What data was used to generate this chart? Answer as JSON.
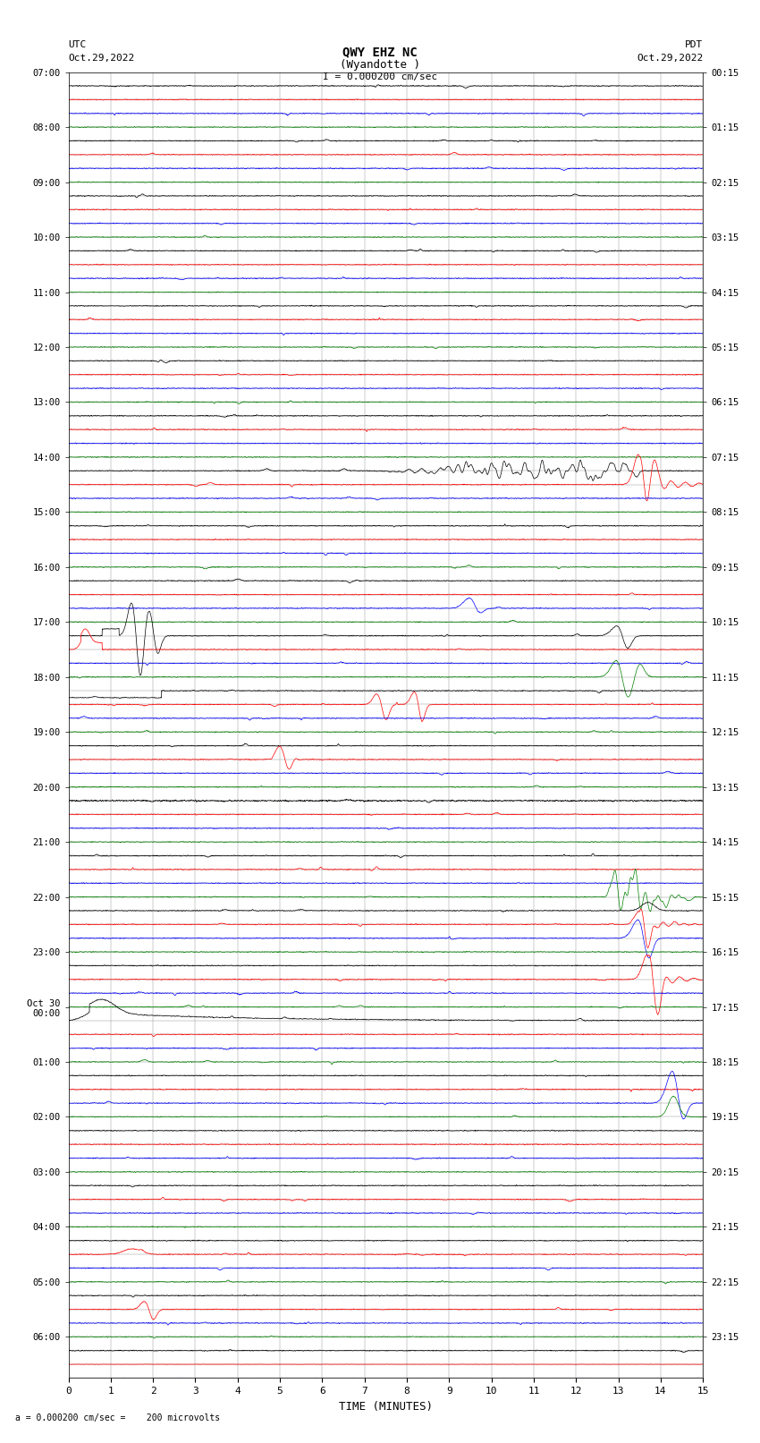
{
  "title_line1": "QWY EHZ NC",
  "title_line2": "(Wyandotte )",
  "scale_text": "I = 0.000200 cm/sec",
  "bottom_text": "a = 0.000200 cm/sec =    200 microvolts",
  "utc_label": "UTC",
  "utc_date": "Oct.29,2022",
  "pdt_label": "PDT",
  "pdt_date": "Oct.29,2022",
  "xlabel": "TIME (MINUTES)",
  "utc_times": [
    "07:00",
    "",
    "",
    "",
    "08:00",
    "",
    "",
    "",
    "09:00",
    "",
    "",
    "",
    "10:00",
    "",
    "",
    "",
    "11:00",
    "",
    "",
    "",
    "12:00",
    "",
    "",
    "",
    "13:00",
    "",
    "",
    "",
    "14:00",
    "",
    "",
    "",
    "15:00",
    "",
    "",
    "",
    "16:00",
    "",
    "",
    "",
    "17:00",
    "",
    "",
    "",
    "18:00",
    "",
    "",
    "",
    "19:00",
    "",
    "",
    "",
    "20:00",
    "",
    "",
    "",
    "21:00",
    "",
    "",
    "",
    "22:00",
    "",
    "",
    "",
    "23:00",
    "",
    "",
    "",
    "Oct 30\n00:00",
    "",
    "",
    "",
    "01:00",
    "",
    "",
    "",
    "02:00",
    "",
    "",
    "",
    "03:00",
    "",
    "",
    "",
    "04:00",
    "",
    "",
    "",
    "05:00",
    "",
    "",
    "",
    "06:00",
    "",
    ""
  ],
  "pdt_times": [
    "00:15",
    "",
    "",
    "",
    "01:15",
    "",
    "",
    "",
    "02:15",
    "",
    "",
    "",
    "03:15",
    "",
    "",
    "",
    "04:15",
    "",
    "",
    "",
    "05:15",
    "",
    "",
    "",
    "06:15",
    "",
    "",
    "",
    "07:15",
    "",
    "",
    "",
    "08:15",
    "",
    "",
    "",
    "09:15",
    "",
    "",
    "",
    "10:15",
    "",
    "",
    "",
    "11:15",
    "",
    "",
    "",
    "12:15",
    "",
    "",
    "",
    "13:15",
    "",
    "",
    "",
    "14:15",
    "",
    "",
    "",
    "15:15",
    "",
    "",
    "",
    "16:15",
    "",
    "",
    "",
    "17:15",
    "",
    "",
    "",
    "18:15",
    "",
    "",
    "",
    "19:15",
    "",
    "",
    "",
    "20:15",
    "",
    "",
    "",
    "21:15",
    "",
    "",
    "",
    "22:15",
    "",
    "",
    "",
    "23:15",
    "",
    ""
  ],
  "n_traces": 95,
  "trace_colors_cycle": [
    "black",
    "red",
    "blue",
    "green"
  ],
  "xmin": 0,
  "xmax": 15,
  "background_color": "white"
}
